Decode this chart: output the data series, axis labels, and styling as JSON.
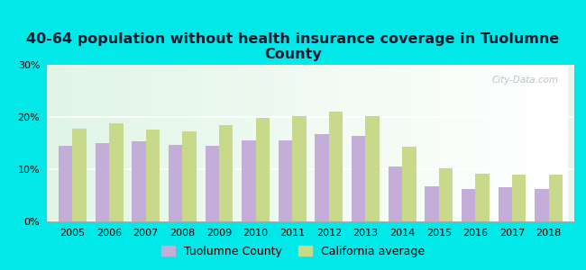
{
  "title": "40-64 population without health insurance coverage in Tuolumne\nCounty",
  "years": [
    2005,
    2006,
    2007,
    2008,
    2009,
    2010,
    2011,
    2012,
    2013,
    2014,
    2015,
    2016,
    2017,
    2018
  ],
  "tuolumne": [
    14.5,
    15.0,
    15.3,
    14.6,
    14.5,
    15.5,
    15.6,
    16.8,
    16.3,
    10.5,
    6.8,
    6.2,
    6.5,
    6.2
  ],
  "california": [
    17.8,
    18.8,
    17.6,
    17.2,
    18.5,
    19.8,
    20.2,
    21.0,
    20.2,
    14.3,
    10.2,
    9.2,
    9.0,
    9.0
  ],
  "tuolumne_color": "#c4aed9",
  "california_color": "#c8d98a",
  "bg_outer": "#00e8e8",
  "bg_chart_top": "#e8f5f0",
  "bg_chart_bottom": "#f5fff8",
  "ylim": [
    0,
    30
  ],
  "yticks": [
    0,
    10,
    20,
    30
  ],
  "bar_width": 0.38,
  "title_fontsize": 11.5,
  "tick_fontsize": 8,
  "legend_fontsize": 9,
  "title_color": "#1a1a2e"
}
